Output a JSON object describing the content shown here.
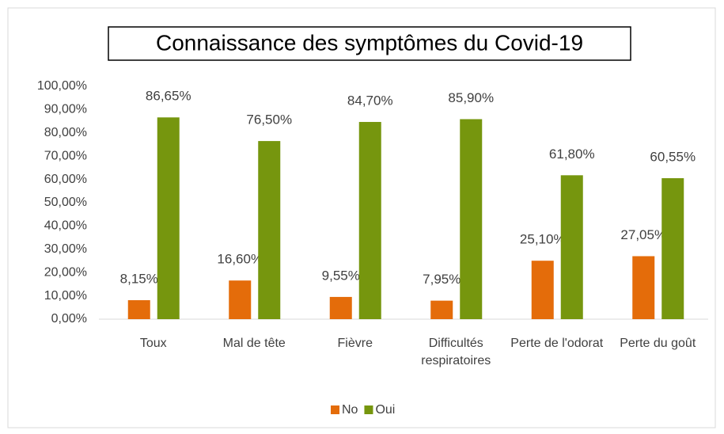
{
  "chart_data": {
    "type": "bar",
    "title": "Connaissance des symptômes du Covid-19",
    "categories": [
      "Toux",
      "Mal de tête",
      "Fièvre",
      "Difficultés respiratoires",
      "Perte de l'odorat",
      "Perte du goût"
    ],
    "series": [
      {
        "name": "No",
        "color": "#e46c0a",
        "values": [
          8.15,
          16.6,
          9.55,
          7.95,
          25.1,
          27.05
        ],
        "value_labels": [
          "8,15%",
          "16,60%",
          "9,55%",
          "7,95%",
          "25,10%",
          "27,05%"
        ]
      },
      {
        "name": "Oui",
        "color": "#76960e",
        "values": [
          86.65,
          76.5,
          84.7,
          85.9,
          61.8,
          60.55
        ],
        "value_labels": [
          "86,65%",
          "76,50%",
          "84,70%",
          "85,90%",
          "61,80%",
          "60,55%"
        ]
      }
    ],
    "ylim": [
      0,
      100
    ],
    "yticks": [
      {
        "value": 0,
        "label": "0,00%"
      },
      {
        "value": 10,
        "label": "10,00%"
      },
      {
        "value": 20,
        "label": "20,00%"
      },
      {
        "value": 30,
        "label": "30,00%"
      },
      {
        "value": 40,
        "label": "40,00%"
      },
      {
        "value": 50,
        "label": "50,00%"
      },
      {
        "value": 60,
        "label": "60,00%"
      },
      {
        "value": 70,
        "label": "70,00%"
      },
      {
        "value": 80,
        "label": "80,00%"
      },
      {
        "value": 90,
        "label": "90,00%"
      },
      {
        "value": 100,
        "label": "100,00%"
      }
    ],
    "grid": false,
    "legend": "bottom"
  }
}
